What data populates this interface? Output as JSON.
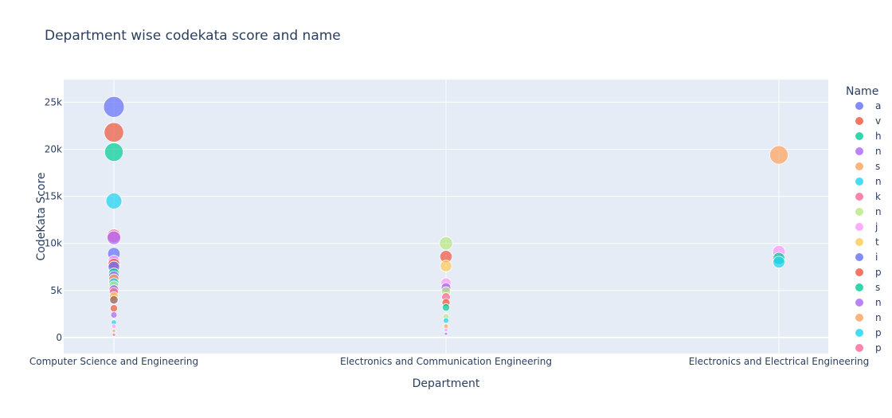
{
  "chart_data": {
    "type": "scatter",
    "title": "Department wise codekata score and name",
    "xlabel": "Department",
    "ylabel": "CodeKata Score",
    "categories": [
      "Computer Science and Engineering",
      "Electronics and Communication Engineering",
      "Electronics and Electrical Engineering"
    ],
    "ylim": [
      -1700,
      27400
    ],
    "yticks": [
      {
        "value": 0,
        "label": "0"
      },
      {
        "value": 5000,
        "label": "5k"
      },
      {
        "value": 10000,
        "label": "10k"
      },
      {
        "value": 15000,
        "label": "15k"
      },
      {
        "value": 20000,
        "label": "20k"
      },
      {
        "value": 25000,
        "label": "25k"
      }
    ],
    "grid": true,
    "legend": {
      "title": "Name",
      "position": "right",
      "items": [
        {
          "label": "a",
          "color": "#636efa"
        },
        {
          "label": "v",
          "color": "#EF553B"
        },
        {
          "label": "h",
          "color": "#00cc96"
        },
        {
          "label": "n",
          "color": "#ab63fa"
        },
        {
          "label": "s",
          "color": "#FFA15A"
        },
        {
          "label": "n",
          "color": "#19d3f3"
        },
        {
          "label": "k",
          "color": "#FF6692"
        },
        {
          "label": "n",
          "color": "#B6E880"
        },
        {
          "label": "j",
          "color": "#FF97FF"
        },
        {
          "label": "t",
          "color": "#FECB52"
        },
        {
          "label": "i",
          "color": "#636efa"
        },
        {
          "label": "p",
          "color": "#EF553B"
        },
        {
          "label": "s",
          "color": "#00cc96"
        },
        {
          "label": "n",
          "color": "#ab63fa"
        },
        {
          "label": "n",
          "color": "#FFA15A"
        },
        {
          "label": "p",
          "color": "#19d3f3"
        },
        {
          "label": "p",
          "color": "#FF6692"
        }
      ]
    },
    "points": [
      {
        "department": "Computer Science and Engineering",
        "score": 24500,
        "color": "#636efa"
      },
      {
        "department": "Computer Science and Engineering",
        "score": 21800,
        "color": "#EF553B"
      },
      {
        "department": "Computer Science and Engineering",
        "score": 19700,
        "color": "#00cc96"
      },
      {
        "department": "Computer Science and Engineering",
        "score": 14500,
        "color": "#19d3f3"
      },
      {
        "department": "Computer Science and Engineering",
        "score": 10800,
        "color": "#FF6692"
      },
      {
        "department": "Computer Science and Engineering",
        "score": 10600,
        "color": "#ab63fa"
      },
      {
        "department": "Computer Science and Engineering",
        "score": 8900,
        "color": "#636efa"
      },
      {
        "department": "Computer Science and Engineering",
        "score": 8100,
        "color": "#FF97FF"
      },
      {
        "department": "Computer Science and Engineering",
        "score": 7800,
        "color": "#EF553B"
      },
      {
        "department": "Computer Science and Engineering",
        "score": 7500,
        "color": "#636efa"
      },
      {
        "department": "Computer Science and Engineering",
        "score": 6800,
        "color": "#00cc96"
      },
      {
        "department": "Computer Science and Engineering",
        "score": 6500,
        "color": "#ab63fa"
      },
      {
        "department": "Computer Science and Engineering",
        "score": 6200,
        "color": "#FFA15A"
      },
      {
        "department": "Computer Science and Engineering",
        "score": 5800,
        "color": "#19d3f3"
      },
      {
        "department": "Computer Science and Engineering",
        "score": 5500,
        "color": "#B6E880"
      },
      {
        "department": "Computer Science and Engineering",
        "score": 5100,
        "color": "#ab63fa"
      },
      {
        "department": "Computer Science and Engineering",
        "score": 4800,
        "color": "#FF6692"
      },
      {
        "department": "Computer Science and Engineering",
        "score": 4400,
        "color": "#FECB52"
      },
      {
        "department": "Computer Science and Engineering",
        "score": 4000,
        "color": "#8c564b"
      },
      {
        "department": "Computer Science and Engineering",
        "score": 3100,
        "color": "#EF553B"
      },
      {
        "department": "Computer Science and Engineering",
        "score": 2400,
        "color": "#ab63fa"
      },
      {
        "department": "Computer Science and Engineering",
        "score": 1600,
        "color": "#19d3f3"
      },
      {
        "department": "Computer Science and Engineering",
        "score": 1200,
        "color": "#FF97FF"
      },
      {
        "department": "Computer Science and Engineering",
        "score": 700,
        "color": "#FFA15A"
      },
      {
        "department": "Computer Science and Engineering",
        "score": 300,
        "color": "#FF6692"
      },
      {
        "department": "Electronics and Communication Engineering",
        "score": 10000,
        "color": "#B6E880"
      },
      {
        "department": "Electronics and Communication Engineering",
        "score": 8600,
        "color": "#EF553B"
      },
      {
        "department": "Electronics and Communication Engineering",
        "score": 7600,
        "color": "#FECB52"
      },
      {
        "department": "Electronics and Communication Engineering",
        "score": 5800,
        "color": "#FF97FF"
      },
      {
        "department": "Electronics and Communication Engineering",
        "score": 5300,
        "color": "#ab63fa"
      },
      {
        "department": "Electronics and Communication Engineering",
        "score": 4900,
        "color": "#B6E880"
      },
      {
        "department": "Electronics and Communication Engineering",
        "score": 4300,
        "color": "#FF6692"
      },
      {
        "department": "Electronics and Communication Engineering",
        "score": 3700,
        "color": "#EF553B"
      },
      {
        "department": "Electronics and Communication Engineering",
        "score": 3200,
        "color": "#00cc96"
      },
      {
        "department": "Electronics and Communication Engineering",
        "score": 2200,
        "color": "#B6E880"
      },
      {
        "department": "Electronics and Communication Engineering",
        "score": 1800,
        "color": "#19d3f3"
      },
      {
        "department": "Electronics and Communication Engineering",
        "score": 1200,
        "color": "#FFA15A"
      },
      {
        "department": "Electronics and Communication Engineering",
        "score": 800,
        "color": "#FF97FF"
      },
      {
        "department": "Electronics and Communication Engineering",
        "score": 400,
        "color": "#ab63fa"
      },
      {
        "department": "Electronics and Electrical Engineering",
        "score": 19400,
        "color": "#FFA15A"
      },
      {
        "department": "Electronics and Electrical Engineering",
        "score": 9100,
        "color": "#FF97FF"
      },
      {
        "department": "Electronics and Electrical Engineering",
        "score": 8400,
        "color": "#00cc96"
      },
      {
        "department": "Electronics and Electrical Engineering",
        "score": 8000,
        "color": "#19d3f3"
      }
    ]
  }
}
